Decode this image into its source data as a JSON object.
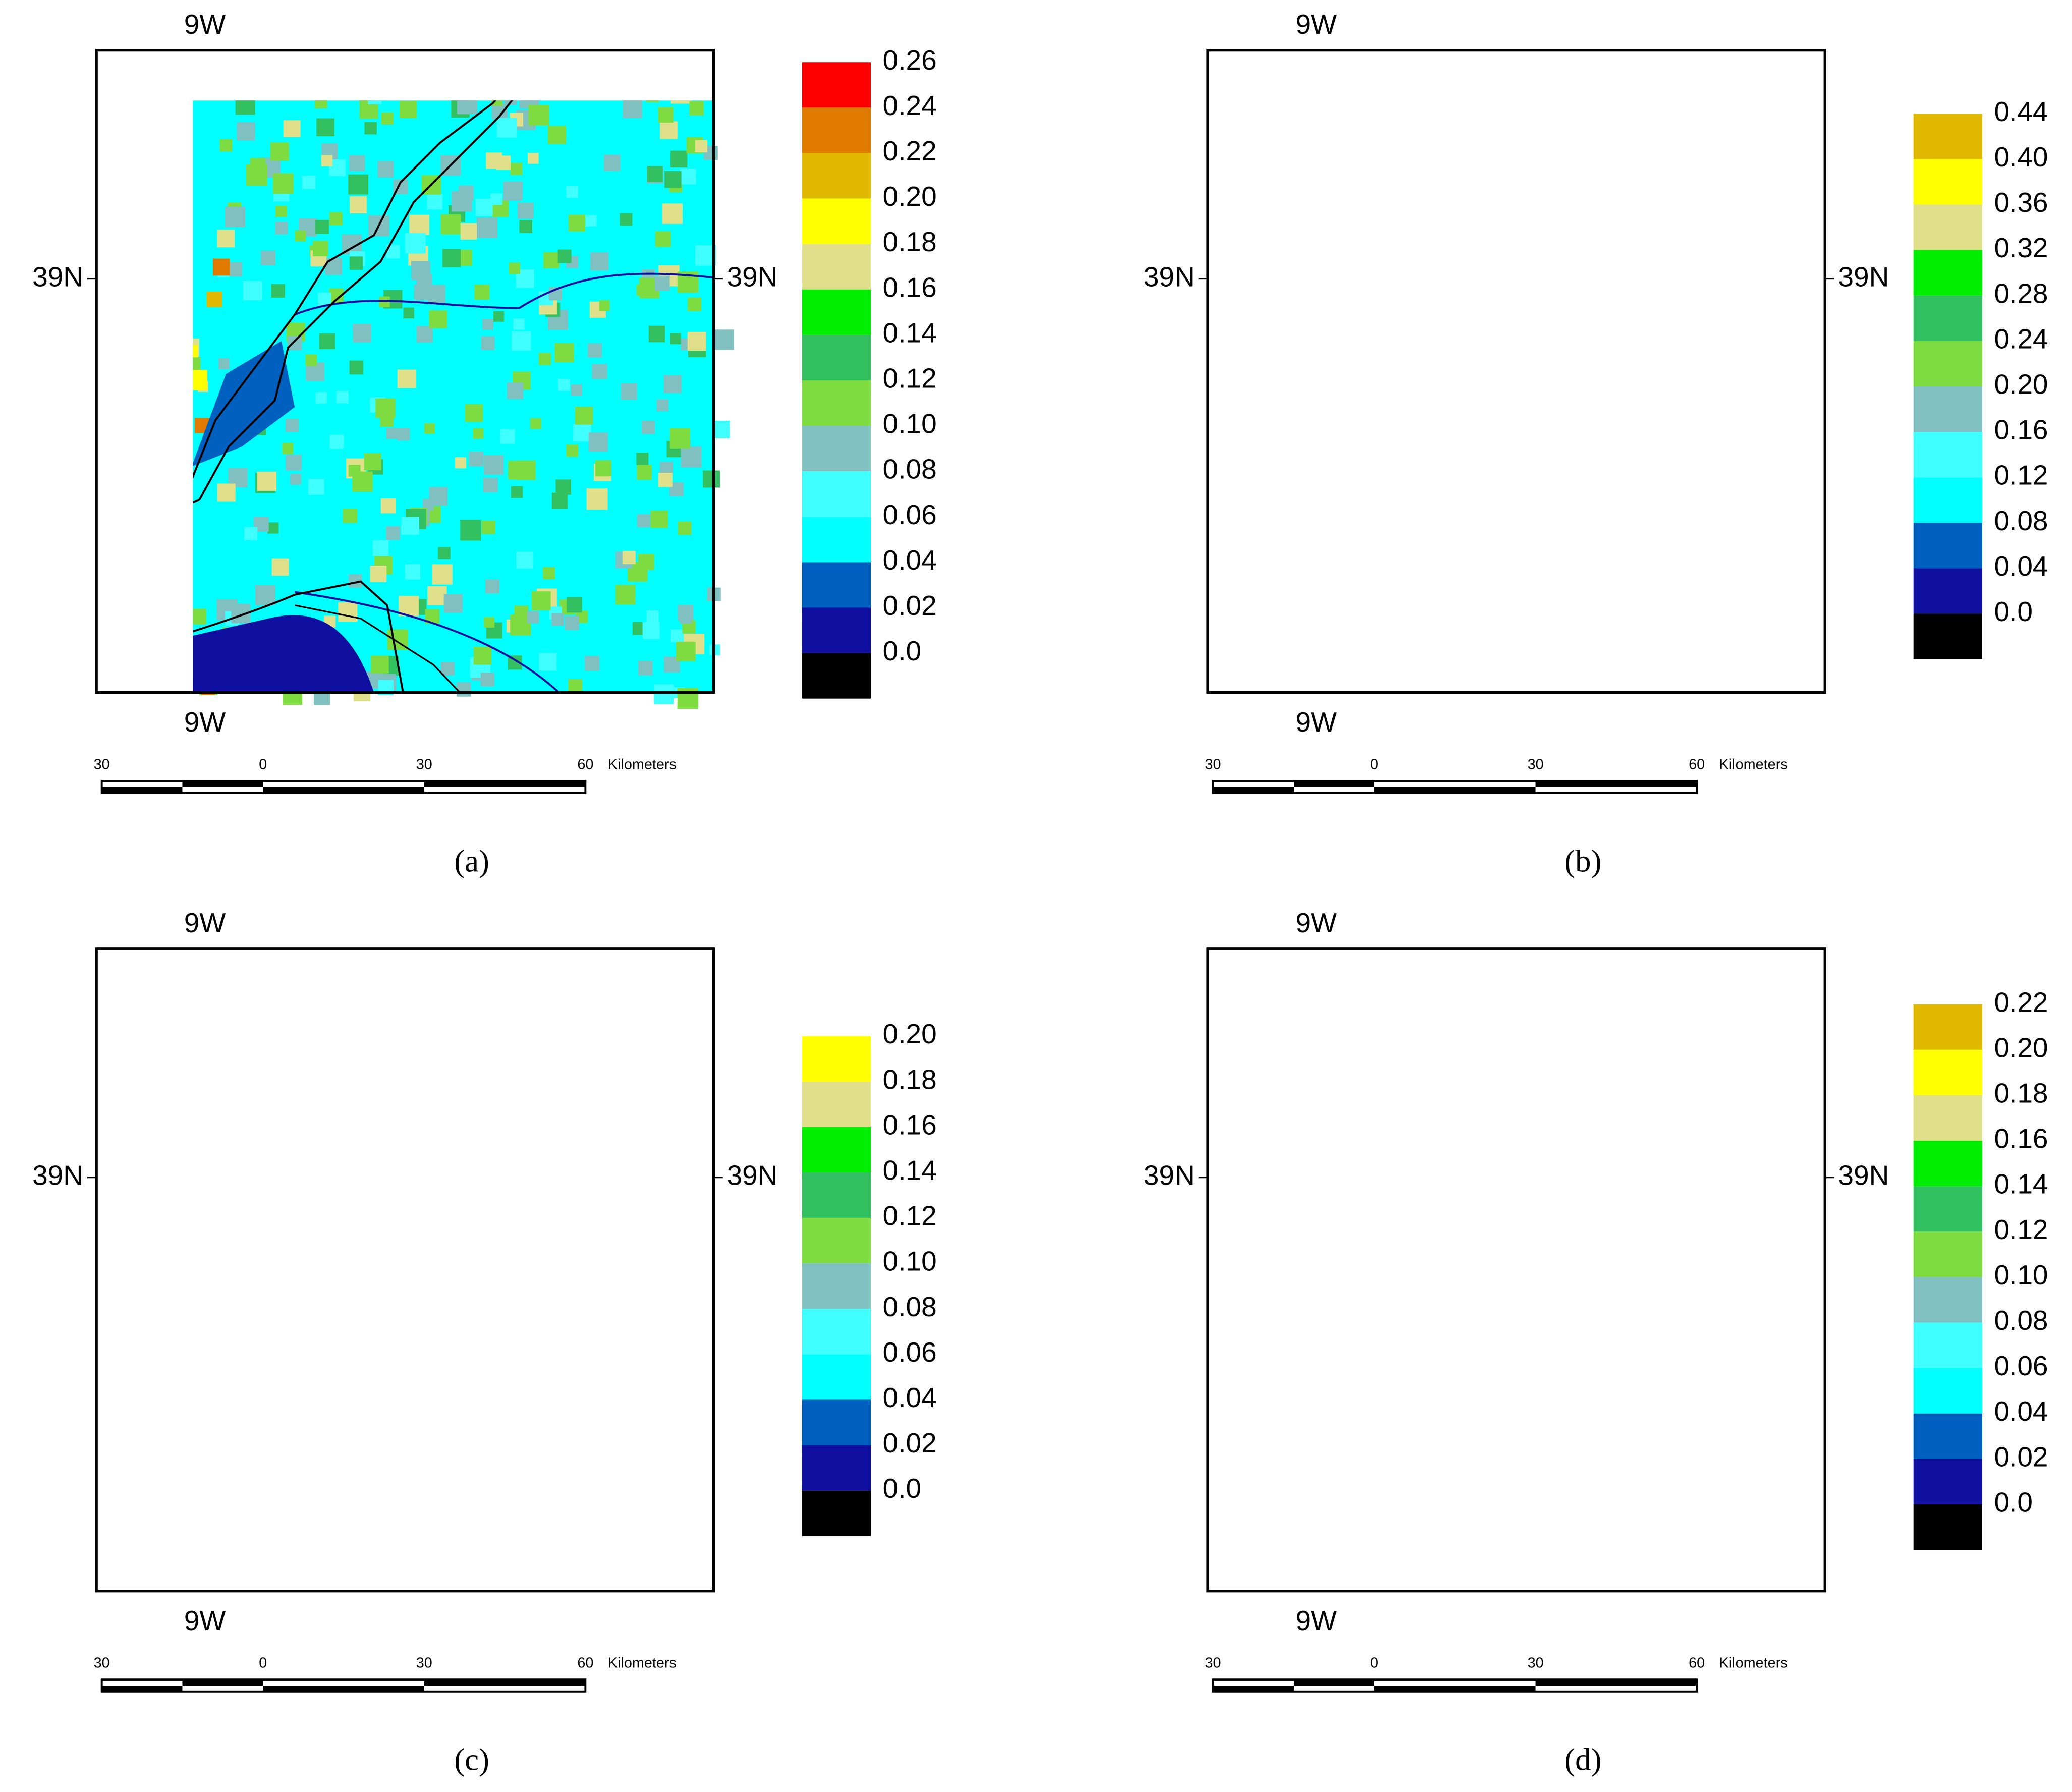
{
  "panels": [
    {
      "caption": "(a)",
      "top_label": "9W",
      "bottom_label": "9W",
      "left_label": "39N",
      "right_label": "39N",
      "legend": [
        {
          "label": "0.26",
          "color": "#ff0000"
        },
        {
          "label": "0.24",
          "color": "#e07b00"
        },
        {
          "label": "0.22",
          "color": "#e0b800"
        },
        {
          "label": "0.20",
          "color": "#ffff00"
        },
        {
          "label": "0.18",
          "color": "#e0e08a"
        },
        {
          "label": "0.16",
          "color": "#00ee00"
        },
        {
          "label": "0.14",
          "color": "#33c060"
        },
        {
          "label": "0.12",
          "color": "#7fdc40"
        },
        {
          "label": "0.10",
          "color": "#80c0c0"
        },
        {
          "label": "0.08",
          "color": "#40ffff"
        },
        {
          "label": "0.06",
          "color": "#00ffff"
        },
        {
          "label": "0.04",
          "color": "#0060c0"
        },
        {
          "label": "0.02",
          "color": "#1010a0"
        },
        {
          "label": "0.0",
          "color": "#000000"
        }
      ],
      "scale_bar": [
        "30",
        "0",
        "30",
        "60"
      ],
      "scale_unit": "Kilometers"
    },
    {
      "caption": "(b)",
      "top_label": "9W",
      "bottom_label": "9W",
      "left_label": "39N",
      "right_label": "39N",
      "legend": [
        {
          "label": "0.44",
          "color": "#e0b800"
        },
        {
          "label": "0.40",
          "color": "#ffff00"
        },
        {
          "label": "0.36",
          "color": "#e0e08a"
        },
        {
          "label": "0.32",
          "color": "#00ee00"
        },
        {
          "label": "0.28",
          "color": "#33c060"
        },
        {
          "label": "0.24",
          "color": "#7fdc40"
        },
        {
          "label": "0.20",
          "color": "#80c0c0"
        },
        {
          "label": "0.16",
          "color": "#40ffff"
        },
        {
          "label": "0.12",
          "color": "#00ffff"
        },
        {
          "label": "0.08",
          "color": "#0060c0"
        },
        {
          "label": "0.04",
          "color": "#1010a0"
        },
        {
          "label": "0.0",
          "color": "#000000"
        }
      ],
      "scale_bar": [
        "30",
        "0",
        "30",
        "60"
      ],
      "scale_unit": "Kilometers"
    },
    {
      "caption": "(c)",
      "top_label": "9W",
      "bottom_label": "9W",
      "left_label": "39N",
      "right_label": "39N",
      "legend": [
        {
          "label": "0.20",
          "color": "#ffff00"
        },
        {
          "label": "0.18",
          "color": "#e0e08a"
        },
        {
          "label": "0.16",
          "color": "#00ee00"
        },
        {
          "label": "0.14",
          "color": "#33c060"
        },
        {
          "label": "0.12",
          "color": "#7fdc40"
        },
        {
          "label": "0.10",
          "color": "#80c0c0"
        },
        {
          "label": "0.08",
          "color": "#40ffff"
        },
        {
          "label": "0.06",
          "color": "#00ffff"
        },
        {
          "label": "0.04",
          "color": "#0060c0"
        },
        {
          "label": "0.02",
          "color": "#1010a0"
        },
        {
          "label": "0.0",
          "color": "#000000"
        }
      ],
      "scale_bar": [
        "30",
        "0",
        "30",
        "60"
      ],
      "scale_unit": "Kilometers"
    },
    {
      "caption": "(d)",
      "top_label": "9W",
      "bottom_label": "9W",
      "left_label": "39N",
      "right_label": "39N",
      "legend": [
        {
          "label": "0.22",
          "color": "#e0b800"
        },
        {
          "label": "0.20",
          "color": "#ffff00"
        },
        {
          "label": "0.18",
          "color": "#e0e08a"
        },
        {
          "label": "0.16",
          "color": "#00ee00"
        },
        {
          "label": "0.14",
          "color": "#33c060"
        },
        {
          "label": "0.12",
          "color": "#7fdc40"
        },
        {
          "label": "0.10",
          "color": "#80c0c0"
        },
        {
          "label": "0.08",
          "color": "#40ffff"
        },
        {
          "label": "0.06",
          "color": "#00ffff"
        },
        {
          "label": "0.04",
          "color": "#0060c0"
        },
        {
          "label": "0.02",
          "color": "#1010a0"
        },
        {
          "label": "0.0",
          "color": "#000000"
        }
      ],
      "scale_bar": [
        "30",
        "0",
        "30",
        "60"
      ],
      "scale_unit": "Kilometers"
    }
  ]
}
